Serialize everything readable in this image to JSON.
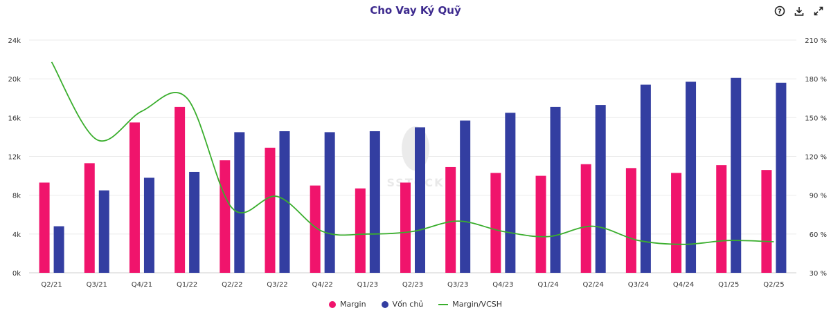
{
  "title": "Cho Vay Ký Quỹ",
  "toolbar": {
    "help_icon": "help-icon",
    "download_icon": "download-icon",
    "expand_icon": "expand-icon"
  },
  "colors": {
    "margin": "#f0146c",
    "vonchu": "#333ea1",
    "ratio": "#3aae2d",
    "title": "#3d2a8e"
  },
  "chart_data": {
    "type": "bar",
    "categories": [
      "Q2/21",
      "Q3/21",
      "Q4/21",
      "Q1/22",
      "Q2/22",
      "Q3/22",
      "Q4/22",
      "Q1/23",
      "Q2/23",
      "Q3/23",
      "Q4/23",
      "Q1/24",
      "Q2/24",
      "Q3/24",
      "Q4/24",
      "Q1/25",
      "Q2/25"
    ],
    "series": [
      {
        "name": "Margin",
        "type": "bar",
        "axis": "left",
        "values": [
          9300,
          11300,
          15500,
          17100,
          11600,
          12900,
          9000,
          8700,
          9300,
          10900,
          10300,
          10000,
          11200,
          10800,
          10300,
          11100,
          10600
        ]
      },
      {
        "name": "Vốn chủ",
        "type": "bar",
        "axis": "left",
        "values": [
          4800,
          8500,
          9800,
          10400,
          14500,
          14600,
          14500,
          14600,
          15000,
          15700,
          16500,
          17100,
          17300,
          19400,
          19700,
          20100,
          19600
        ]
      },
      {
        "name": "Margin/VCSH",
        "type": "line",
        "axis": "right",
        "values": [
          193,
          133,
          155,
          165,
          80,
          89,
          62,
          60,
          62,
          70,
          62,
          58,
          66,
          55,
          52,
          55,
          54
        ]
      }
    ],
    "left_axis": {
      "min": 0,
      "max": 24000,
      "ticks": [
        "0k",
        "4k",
        "8k",
        "12k",
        "16k",
        "20k",
        "24k"
      ]
    },
    "right_axis": {
      "min": 30,
      "max": 210,
      "ticks": [
        "30 %",
        "60 %",
        "90 %",
        "120 %",
        "150 %",
        "180 %",
        "210 %"
      ]
    },
    "grid": true,
    "legend_position": "bottom-center"
  }
}
